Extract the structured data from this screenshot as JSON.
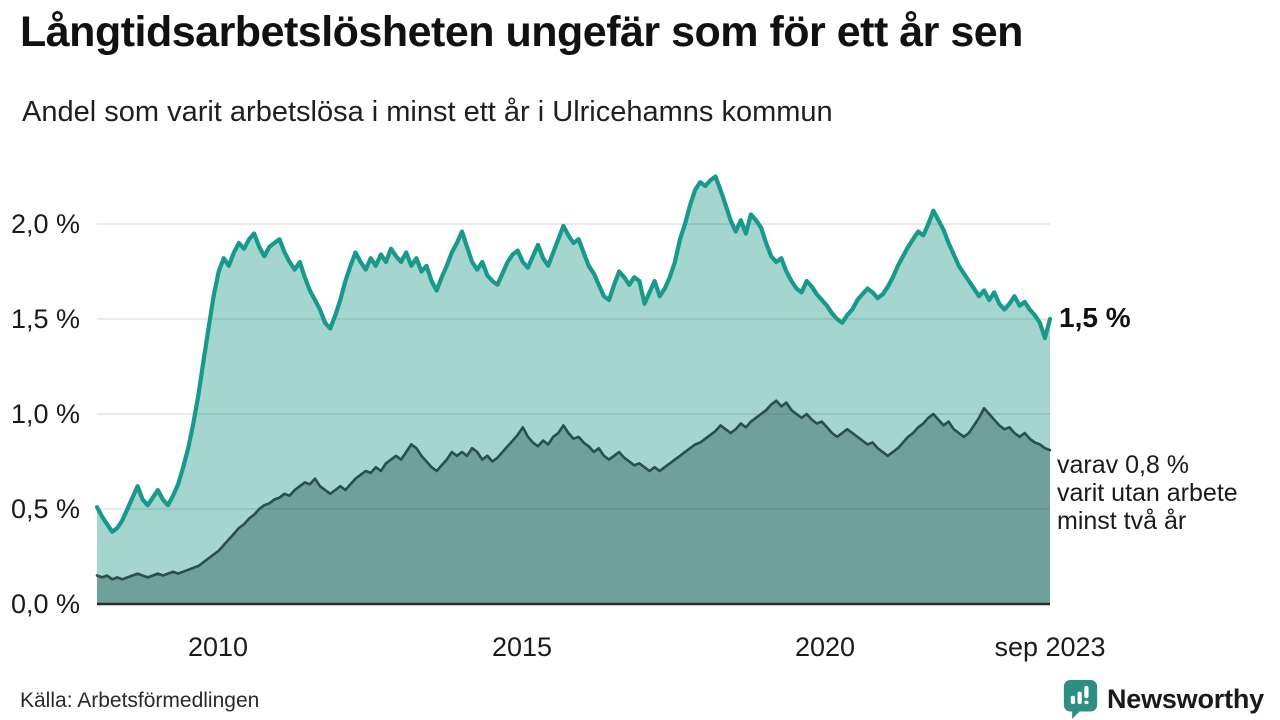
{
  "chart_data": {
    "type": "area",
    "title": "Långtidsarbetslösheten ungefär som för ett år sen",
    "subtitle": "Andel som varit arbetslösa i minst ett år i Ulricehamns kommun",
    "source": "Källa: Arbetsförmedlingen",
    "x_unit": "month",
    "x_start": "2008-01",
    "x_end": "2023-09",
    "ylim": [
      0,
      2.3
    ],
    "grid": true,
    "axis_color": "#2b2b2b",
    "gridline_color": "rgba(60,60,60,0.14)",
    "y_ticks": [
      {
        "label": "0,0 %",
        "value": 0.0
      },
      {
        "label": "0,5 %",
        "value": 0.5
      },
      {
        "label": "1,0 %",
        "value": 1.0
      },
      {
        "label": "1,5 %",
        "value": 1.5
      },
      {
        "label": "2,0 %",
        "value": 2.0
      }
    ],
    "x_ticks": [
      {
        "label": "2010",
        "year": 2010
      },
      {
        "label": "2015",
        "year": 2015
      },
      {
        "label": "2020",
        "year": 2020
      },
      {
        "label": "sep 2023",
        "year": 2023.708
      }
    ],
    "series": [
      {
        "name": "Andel arbetslösa minst ett år",
        "line_color": "#17998c",
        "fill_color": "#a4d5cf",
        "line_width": 4.2,
        "end_label": "1,5 %",
        "end_value": 1.5,
        "values": [
          0.51,
          0.46,
          0.42,
          0.38,
          0.4,
          0.44,
          0.5,
          0.56,
          0.62,
          0.55,
          0.52,
          0.56,
          0.6,
          0.55,
          0.52,
          0.57,
          0.63,
          0.72,
          0.82,
          0.95,
          1.1,
          1.28,
          1.45,
          1.62,
          1.75,
          1.82,
          1.78,
          1.85,
          1.9,
          1.87,
          1.92,
          1.95,
          1.88,
          1.83,
          1.88,
          1.9,
          1.92,
          1.85,
          1.8,
          1.76,
          1.8,
          1.72,
          1.65,
          1.6,
          1.55,
          1.48,
          1.45,
          1.52,
          1.6,
          1.7,
          1.78,
          1.85,
          1.8,
          1.76,
          1.82,
          1.78,
          1.84,
          1.8,
          1.87,
          1.83,
          1.8,
          1.85,
          1.78,
          1.82,
          1.75,
          1.78,
          1.7,
          1.65,
          1.72,
          1.78,
          1.85,
          1.9,
          1.96,
          1.88,
          1.8,
          1.76,
          1.8,
          1.73,
          1.7,
          1.68,
          1.74,
          1.8,
          1.84,
          1.86,
          1.8,
          1.77,
          1.83,
          1.89,
          1.82,
          1.78,
          1.85,
          1.92,
          1.99,
          1.94,
          1.9,
          1.92,
          1.85,
          1.78,
          1.74,
          1.68,
          1.62,
          1.6,
          1.68,
          1.75,
          1.72,
          1.68,
          1.72,
          1.7,
          1.58,
          1.64,
          1.7,
          1.62,
          1.66,
          1.72,
          1.8,
          1.92,
          2.0,
          2.1,
          2.18,
          2.22,
          2.2,
          2.23,
          2.25,
          2.18,
          2.1,
          2.02,
          1.96,
          2.02,
          1.95,
          2.05,
          2.02,
          1.98,
          1.9,
          1.83,
          1.8,
          1.82,
          1.75,
          1.7,
          1.66,
          1.64,
          1.7,
          1.67,
          1.63,
          1.6,
          1.57,
          1.53,
          1.5,
          1.48,
          1.52,
          1.55,
          1.6,
          1.63,
          1.66,
          1.64,
          1.61,
          1.63,
          1.67,
          1.72,
          1.78,
          1.83,
          1.88,
          1.92,
          1.96,
          1.94,
          2.0,
          2.07,
          2.02,
          1.97,
          1.9,
          1.84,
          1.78,
          1.74,
          1.7,
          1.66,
          1.62,
          1.65,
          1.6,
          1.64,
          1.58,
          1.55,
          1.58,
          1.62,
          1.57,
          1.59,
          1.55,
          1.52,
          1.48,
          1.4,
          1.5
        ]
      },
      {
        "name": "varav utan arbete minst två år",
        "line_color": "#2b4f4a",
        "fill_color": "#6fa09a",
        "line_width": 2.6,
        "end_label": "varav 0,8 %\nvarit utan arbete\nminst två år",
        "end_value": 0.8,
        "values": [
          0.15,
          0.14,
          0.15,
          0.13,
          0.14,
          0.13,
          0.14,
          0.15,
          0.16,
          0.15,
          0.14,
          0.15,
          0.16,
          0.15,
          0.16,
          0.17,
          0.16,
          0.17,
          0.18,
          0.19,
          0.2,
          0.22,
          0.24,
          0.26,
          0.28,
          0.31,
          0.34,
          0.37,
          0.4,
          0.42,
          0.45,
          0.47,
          0.5,
          0.52,
          0.53,
          0.55,
          0.56,
          0.58,
          0.57,
          0.6,
          0.62,
          0.64,
          0.63,
          0.66,
          0.62,
          0.6,
          0.58,
          0.6,
          0.62,
          0.6,
          0.63,
          0.66,
          0.68,
          0.7,
          0.69,
          0.72,
          0.7,
          0.74,
          0.76,
          0.78,
          0.76,
          0.8,
          0.84,
          0.82,
          0.78,
          0.75,
          0.72,
          0.7,
          0.73,
          0.76,
          0.8,
          0.78,
          0.8,
          0.78,
          0.82,
          0.8,
          0.76,
          0.78,
          0.75,
          0.77,
          0.8,
          0.83,
          0.86,
          0.89,
          0.93,
          0.88,
          0.85,
          0.83,
          0.86,
          0.84,
          0.88,
          0.9,
          0.94,
          0.9,
          0.87,
          0.88,
          0.85,
          0.83,
          0.8,
          0.82,
          0.78,
          0.76,
          0.78,
          0.8,
          0.77,
          0.75,
          0.73,
          0.74,
          0.72,
          0.7,
          0.72,
          0.7,
          0.72,
          0.74,
          0.76,
          0.78,
          0.8,
          0.82,
          0.84,
          0.85,
          0.87,
          0.89,
          0.91,
          0.94,
          0.92,
          0.9,
          0.92,
          0.95,
          0.93,
          0.96,
          0.98,
          1.0,
          1.02,
          1.05,
          1.07,
          1.04,
          1.06,
          1.02,
          1.0,
          0.98,
          1.0,
          0.97,
          0.95,
          0.96,
          0.93,
          0.9,
          0.88,
          0.9,
          0.92,
          0.9,
          0.88,
          0.86,
          0.84,
          0.85,
          0.82,
          0.8,
          0.78,
          0.8,
          0.82,
          0.85,
          0.88,
          0.9,
          0.93,
          0.95,
          0.98,
          1.0,
          0.97,
          0.94,
          0.96,
          0.92,
          0.9,
          0.88,
          0.9,
          0.94,
          0.98,
          1.03,
          1.0,
          0.97,
          0.94,
          0.92,
          0.93,
          0.9,
          0.88,
          0.9,
          0.87,
          0.85,
          0.84,
          0.82,
          0.81
        ]
      }
    ]
  },
  "branding": {
    "logo_text": "Newsworthy",
    "logo_icon": "bar-chart-speech-bubble-icon",
    "brand_color": "#2f8e84"
  }
}
